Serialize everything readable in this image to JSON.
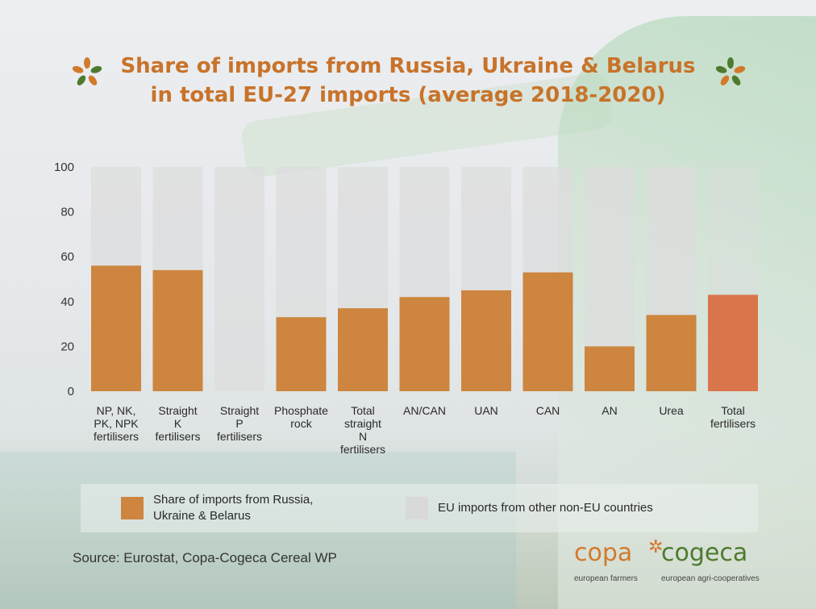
{
  "title_lines": [
    "Share of imports from Russia, Ukraine & Belarus",
    "in total EU-27 imports (average 2018-2020)"
  ],
  "source": "Source: Eurostat, Copa-Cogeca Cereal WP",
  "logo": {
    "left_word": "copa",
    "right_word": "cogeca",
    "left_sub": "european farmers",
    "right_sub": "european agri-cooperatives"
  },
  "legend": [
    {
      "label_lines": [
        "Share of imports from Russia,",
        "Ukraine & Belarus"
      ],
      "color": "#cd853f"
    },
    {
      "label_lines": [
        "EU imports from other non-EU countries"
      ],
      "color": "#d9d9d9"
    }
  ],
  "colors": {
    "title": "#c8732a",
    "share": "#cd853f",
    "share_total": "#d9754a",
    "other": "#dcdcdc"
  },
  "chart_data": {
    "type": "bar",
    "stacked": true,
    "title": "Share of imports from Russia, Ukraine & Belarus in total EU-27 imports (average 2018-2020)",
    "ylim": [
      0,
      100
    ],
    "yticks": [
      0,
      20,
      40,
      60,
      80,
      100
    ],
    "grid": false,
    "legend_position": "bottom",
    "categories": [
      [
        "NP, NK,",
        "PK, NPK",
        "fertilisers"
      ],
      [
        "Straight",
        "K",
        "fertilisers"
      ],
      [
        "Straight",
        "P",
        "fertilisers"
      ],
      [
        "Phosphate",
        "rock"
      ],
      [
        "Total",
        "straight",
        "N",
        "fertilisers"
      ],
      [
        "AN/CAN"
      ],
      [
        "UAN"
      ],
      [
        "CAN"
      ],
      [
        "AN"
      ],
      [
        "Urea"
      ],
      [
        "Total",
        "fertilisers"
      ]
    ],
    "series": [
      {
        "name": "Share of imports from Russia, Ukraine & Belarus",
        "values": [
          56,
          54,
          0,
          33,
          37,
          42,
          45,
          53,
          20,
          34,
          43
        ]
      },
      {
        "name": "EU imports from other non-EU countries",
        "values": [
          44,
          46,
          100,
          67,
          63,
          58,
          55,
          47,
          80,
          66,
          57
        ]
      }
    ]
  }
}
